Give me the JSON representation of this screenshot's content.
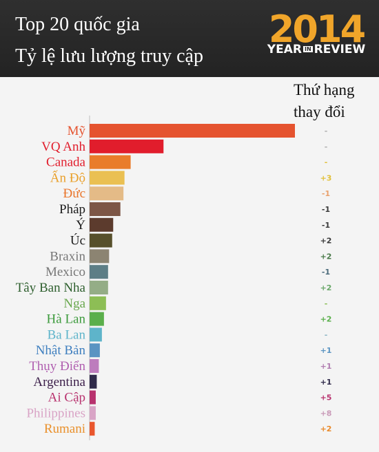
{
  "header": {
    "title_line1": "Top 20 quốc gia",
    "title_line2": "Tỷ lệ lưu lượng truy cập",
    "badge_year": "2014",
    "badge_left": "YEAR",
    "badge_in": "IN",
    "badge_right": "REVIEW"
  },
  "rank_header": {
    "line1": "Thứ hạng",
    "line2": "thay đổi"
  },
  "chart_data": {
    "type": "bar",
    "orientation": "horizontal",
    "categories": [
      "Mỹ",
      "VQ Anh",
      "Canada",
      "Ấn Độ",
      "Đức",
      "Pháp",
      "Ý",
      "Úc",
      "Braxin",
      "Mexico",
      "Tây Ban Nha",
      "Nga",
      "Hà Lan",
      "Ba Lan",
      "Nhật Bản",
      "Thụy Điển",
      "Argentina",
      "Ai Cập",
      "Philippines",
      "Rumani"
    ],
    "values": [
      100,
      36,
      20,
      17,
      16.5,
      15,
      11.5,
      11,
      9.5,
      9,
      9,
      8,
      7,
      6,
      5,
      4.5,
      3.5,
      3,
      3,
      2.5
    ],
    "rank_change": [
      "-",
      "-",
      "-",
      "+3",
      "-1",
      "-1",
      "-1",
      "+2",
      "+2",
      "-1",
      "+2",
      "-",
      "+2",
      "-",
      "+1",
      "+1",
      "+1",
      "+5",
      "+8",
      "+2"
    ],
    "colors": [
      "#e5532f",
      "#e11d2c",
      "#e97c2b",
      "#eac052",
      "#e4bb87",
      "#7d5646",
      "#5c3b2d",
      "#57502b",
      "#8c8472",
      "#5d7e86",
      "#94ad86",
      "#8dbe55",
      "#5aaf4b",
      "#5eb4ca",
      "#5a94c2",
      "#bd7cbd",
      "#2f2a4a",
      "#b8326e",
      "#d9a4c6",
      "#e9562d"
    ],
    "label_colors": [
      "#e5532f",
      "#e11d2c",
      "#e11d2c",
      "#e9a02b",
      "#e9752b",
      "#1b1b1b",
      "#1b1b1b",
      "#1b1b1b",
      "#777777",
      "#777777",
      "#2e5f2e",
      "#6aa84f",
      "#3c9a3c",
      "#5eb4ca",
      "#3f7fbf",
      "#b05fb0",
      "#3c1f4a",
      "#b8326e",
      "#d9a4c6",
      "#e9902b"
    ],
    "rank_colors": [
      "#b0b0b0",
      "#b0b0b0",
      "#e1c03a",
      "#e1c03a",
      "#e9a06b",
      "#3a3a3a",
      "#3a3a3a",
      "#3a3a3a",
      "#4a7a4a",
      "#4a6a7a",
      "#6aa86a",
      "#8abe55",
      "#5aaf4b",
      "#8ab4c4",
      "#5a94c2",
      "#b07cb0",
      "#2f2a4a",
      "#b8326e",
      "#c99ab8",
      "#e98a2b"
    ]
  }
}
